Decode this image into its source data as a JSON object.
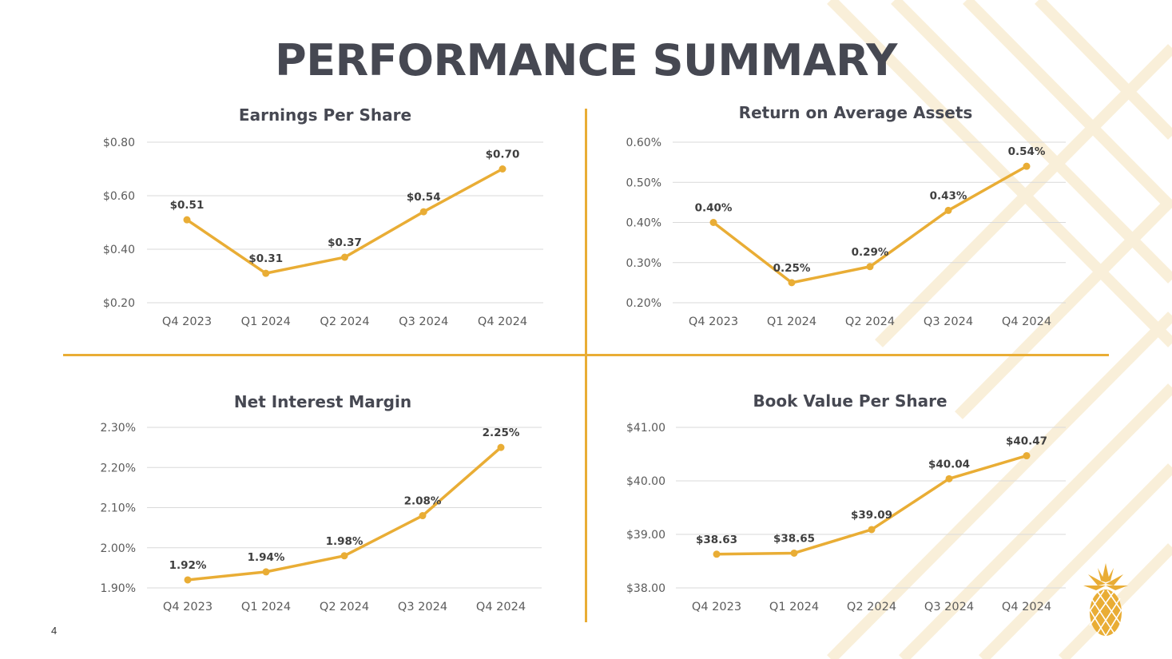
{
  "page": {
    "title": "PERFORMANCE SUMMARY",
    "page_number": "4"
  },
  "colors": {
    "accent": "#e9ad35",
    "title": "#464852",
    "grid": "#d9d9d9",
    "text": "#5b5b5b"
  },
  "logo": {
    "icon": "pineapple-icon"
  },
  "chart_data": [
    {
      "type": "line",
      "title": "Earnings Per Share",
      "categories": [
        "Q4 2023",
        "Q1 2024",
        "Q2 2024",
        "Q3 2024",
        "Q4 2024"
      ],
      "values": [
        0.51,
        0.31,
        0.37,
        0.54,
        0.7
      ],
      "value_labels": [
        "$0.51",
        "$0.31",
        "$0.37",
        "$0.54",
        "$0.70"
      ],
      "ylim": [
        0.2,
        0.8
      ],
      "yticks": [
        0.2,
        0.4,
        0.6,
        0.8
      ],
      "ytick_labels": [
        "$0.20",
        "$0.40",
        "$0.60",
        "$0.80"
      ],
      "grid": true,
      "color": "#e9ad35"
    },
    {
      "type": "line",
      "title": "Return on Average Assets",
      "categories": [
        "Q4 2023",
        "Q1 2024",
        "Q2 2024",
        "Q3 2024",
        "Q4 2024"
      ],
      "values": [
        0.4,
        0.25,
        0.29,
        0.43,
        0.54
      ],
      "value_labels": [
        "0.40%",
        "0.25%",
        "0.29%",
        "0.43%",
        "0.54%"
      ],
      "ylim": [
        0.2,
        0.6
      ],
      "yticks": [
        0.2,
        0.3,
        0.4,
        0.5,
        0.6
      ],
      "ytick_labels": [
        "0.20%",
        "0.30%",
        "0.40%",
        "0.50%",
        "0.60%"
      ],
      "grid": true,
      "color": "#e9ad35"
    },
    {
      "type": "line",
      "title": "Net Interest Margin",
      "categories": [
        "Q4 2023",
        "Q1 2024",
        "Q2 2024",
        "Q3 2024",
        "Q4 2024"
      ],
      "values": [
        1.92,
        1.94,
        1.98,
        2.08,
        2.25
      ],
      "value_labels": [
        "1.92%",
        "1.94%",
        "1.98%",
        "2.08%",
        "2.25%"
      ],
      "ylim": [
        1.9,
        2.3
      ],
      "yticks": [
        1.9,
        2.0,
        2.1,
        2.2,
        2.3
      ],
      "ytick_labels": [
        "1.90%",
        "2.00%",
        "2.10%",
        "2.20%",
        "2.30%"
      ],
      "grid": true,
      "color": "#e9ad35"
    },
    {
      "type": "line",
      "title": "Book Value Per Share",
      "categories": [
        "Q4 2023",
        "Q1 2024",
        "Q2 2024",
        "Q3 2024",
        "Q4 2024"
      ],
      "values": [
        38.63,
        38.65,
        39.09,
        40.04,
        40.47
      ],
      "value_labels": [
        "$38.63",
        "$38.65",
        "$39.09",
        "$40.04",
        "$40.47"
      ],
      "ylim": [
        38.0,
        41.0
      ],
      "yticks": [
        38.0,
        39.0,
        40.0,
        41.0
      ],
      "ytick_labels": [
        "$38.00",
        "$39.00",
        "$40.00",
        "$41.00"
      ],
      "grid": true,
      "color": "#e9ad35"
    }
  ]
}
